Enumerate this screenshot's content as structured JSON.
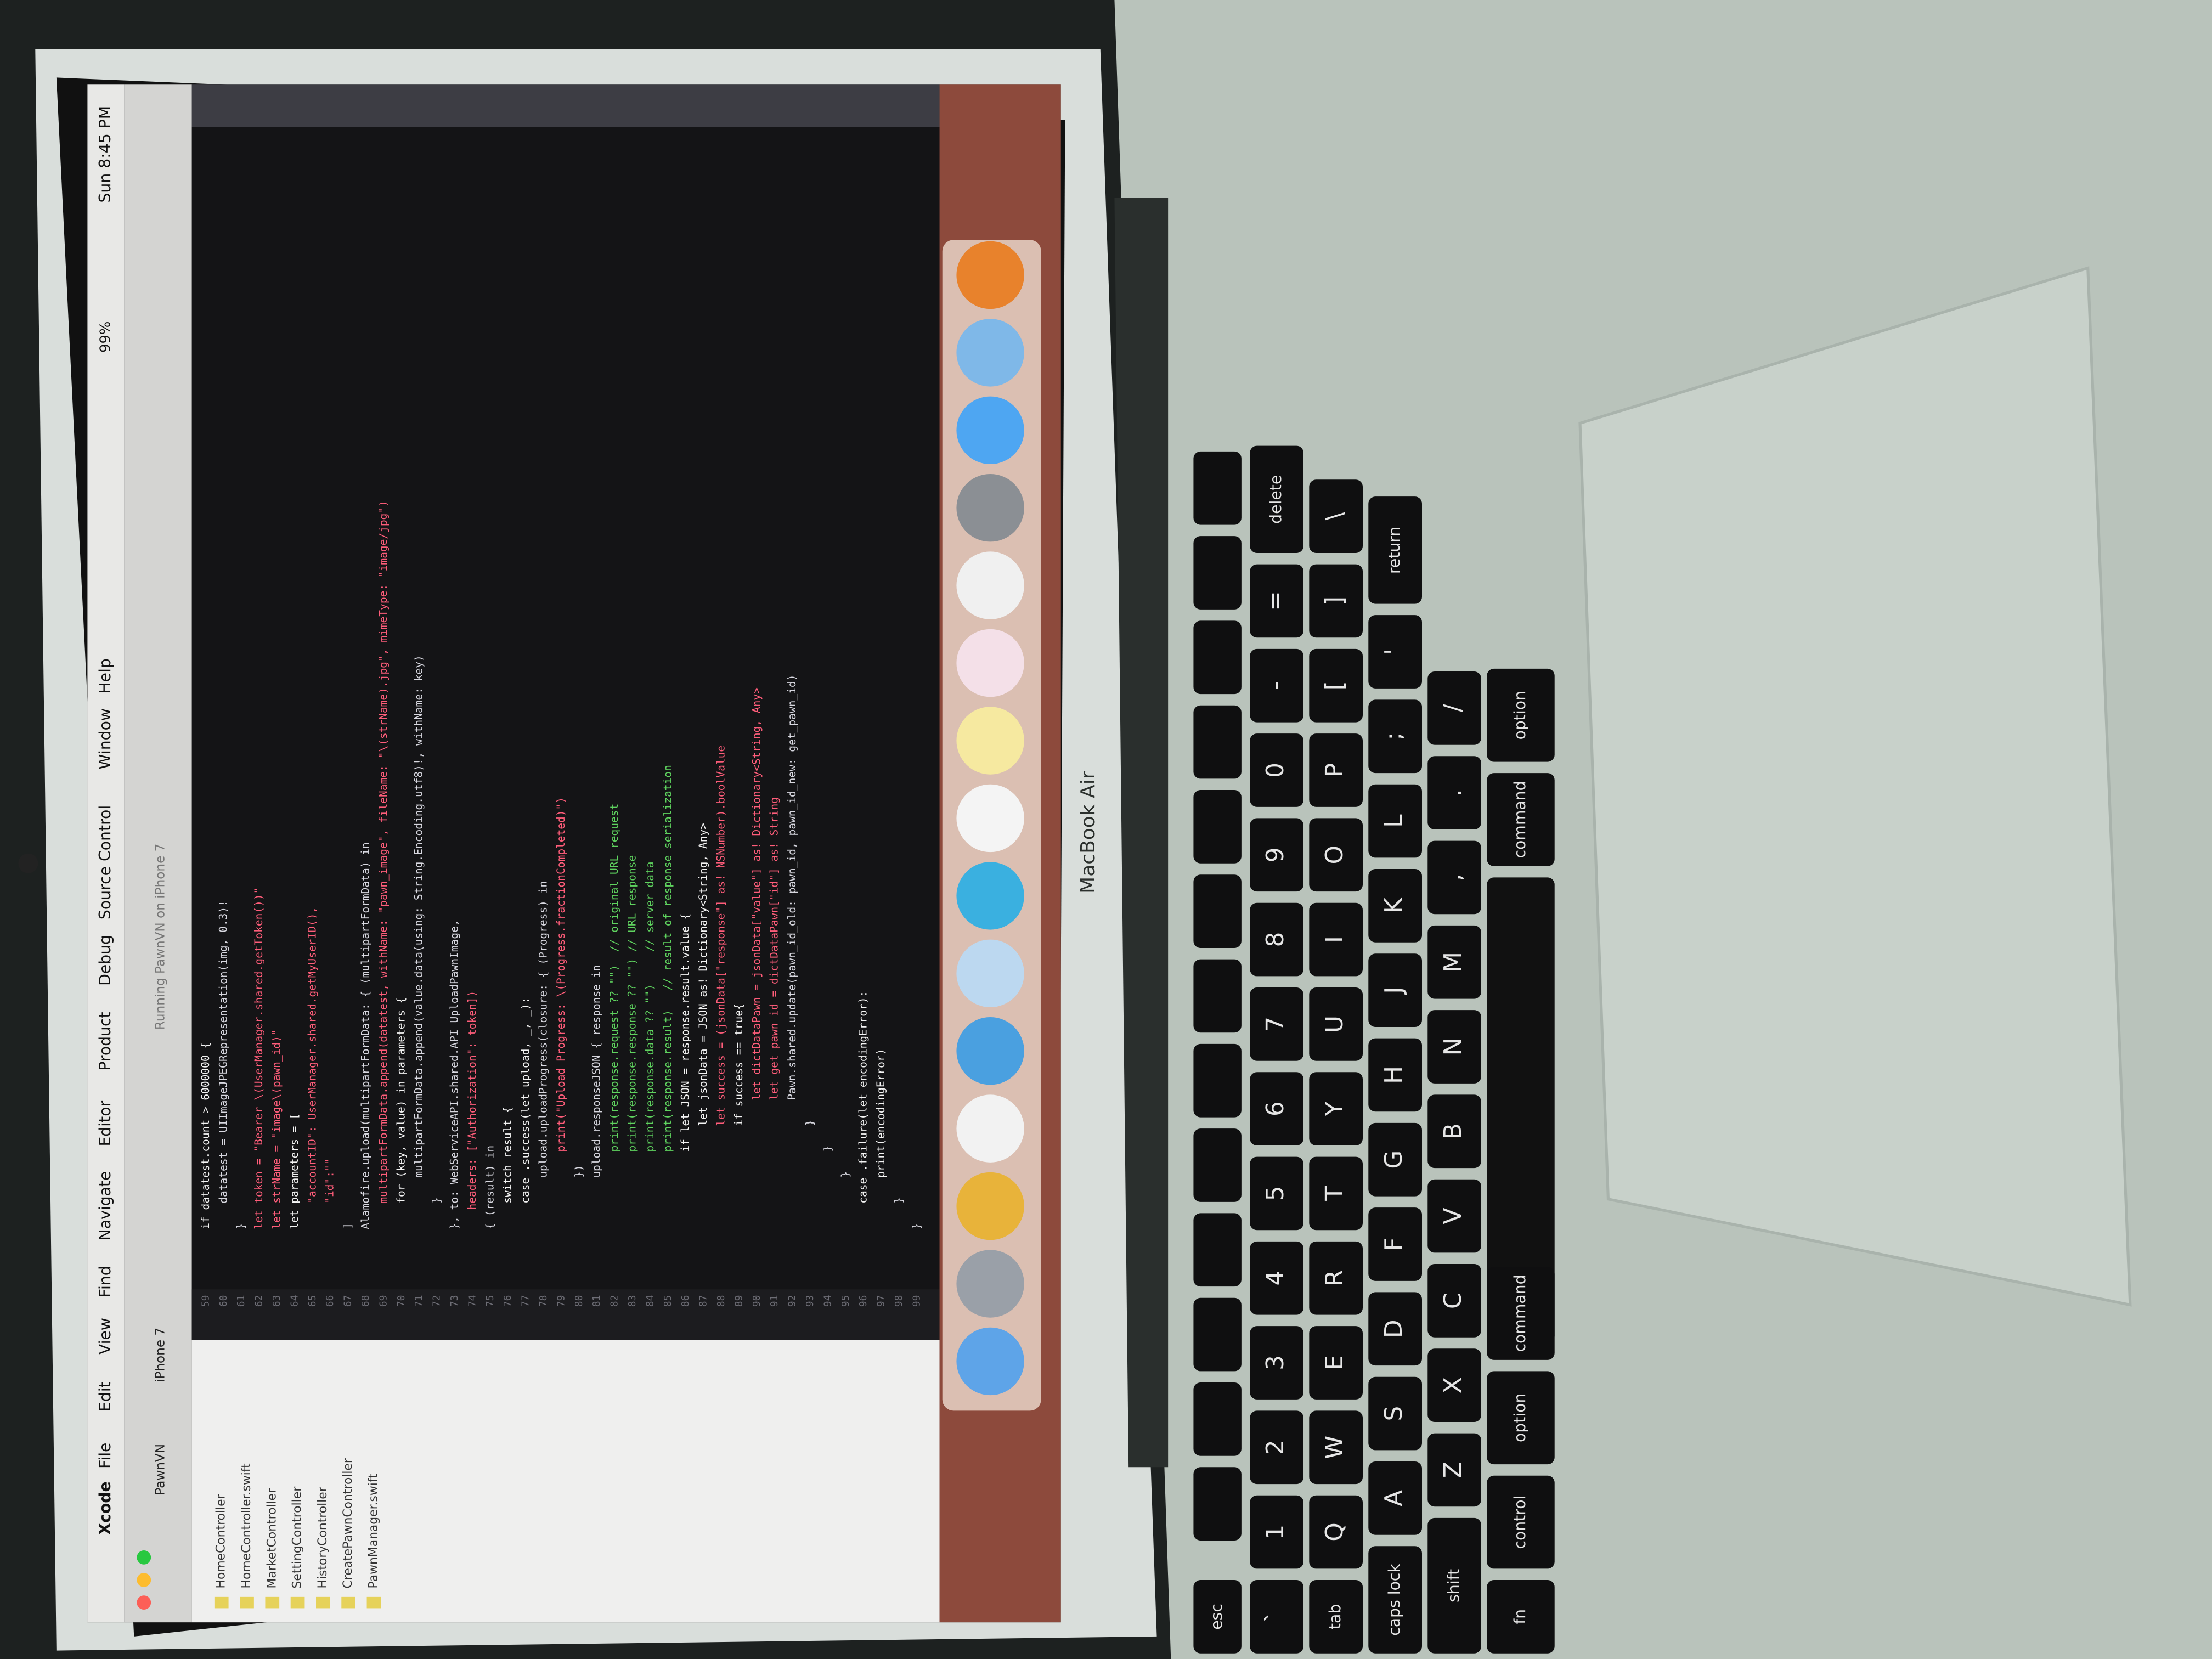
{
  "menu_bar": {
    "items": [
      "Xcode",
      "File",
      "Edit",
      "View",
      "Find",
      "Navigate",
      "Editor",
      "Product",
      "Debug",
      "Source Control",
      "Window",
      "Help"
    ]
  },
  "status": {
    "battery": "99%",
    "clock": "Sun 8:45 PM"
  },
  "toolbar": {
    "scheme": "PawnVN",
    "device": "iPhone 7",
    "status": "Running PawnVN on iPhone 7"
  },
  "navigator": {
    "files": [
      "HomeController",
      "HomeController.swift",
      "MarketController",
      "SettingController",
      "HistoryController",
      "CreatePawnController",
      "PawnManager.swift"
    ]
  },
  "editor": {
    "lines": [
      {
        "number": 59,
        "code": "        if datatest.count > 6000000 {"
      },
      {
        "number": 60,
        "code": "            datatest = UIImageJPEGRepresentation(img, 0.3)!"
      },
      {
        "number": 61,
        "code": "        }"
      },
      {
        "number": 62,
        "code": "        let token = \"Bearer \\(UserManager.shared.getToken())\""
      },
      {
        "number": 63,
        "code": "        let strName = \"image\\(pawn_id)\""
      },
      {
        "number": 64,
        "code": "        let parameters = ["
      },
      {
        "number": 65,
        "code": "            \"accountID\": UserManager.shared.getMyUserID(),"
      },
      {
        "number": 66,
        "code": "            \"id\":\"\""
      },
      {
        "number": 67,
        "code": "        ]"
      },
      {
        "number": 68,
        "code": "        Alamofire.upload(multipartFormData: { (multipartFormData) in"
      },
      {
        "number": 69,
        "code": "            multipartFormData.append(datatest, withName: \"pawn_image\", fileName: \"\\(strName).jpg\", mimeType: \"image/jpg\")"
      },
      {
        "number": 70,
        "code": "            for (key, value) in parameters {"
      },
      {
        "number": 71,
        "code": "                multipartFormData.append(value.data(using: String.Encoding.utf8)!, withName: key)"
      },
      {
        "number": 72,
        "code": "            }"
      },
      {
        "number": 73,
        "code": "        }, to: WebServiceAPI.shared.API_UploadPawnImage,"
      },
      {
        "number": 74,
        "code": "           headers: [\"Authorization\": token])"
      },
      {
        "number": 75,
        "code": "        { (result) in"
      },
      {
        "number": 76,
        "code": "            switch result {"
      },
      {
        "number": 77,
        "code": "            case .success(let upload, _, _):"
      },
      {
        "number": 78,
        "code": "                upload.uploadProgress(closure: { (Progress) in"
      },
      {
        "number": 79,
        "code": "                    print(\"Upload Progress: \\(Progress.fractionCompleted)\")"
      },
      {
        "number": 80,
        "code": "                })"
      },
      {
        "number": 81,
        "code": "                upload.responseJSON { response in"
      },
      {
        "number": 82,
        "code": "                    print(response.request ?? \"\")  // original URL request"
      },
      {
        "number": 83,
        "code": "                    print(response.response ?? \"\") // URL response"
      },
      {
        "number": 84,
        "code": "                    print(response.data ?? \"\")     // server data"
      },
      {
        "number": 85,
        "code": "                    print(response.result)   // result of response serialization"
      },
      {
        "number": 86,
        "code": "                    if let JSON = response.result.value {"
      },
      {
        "number": 87,
        "code": "                        let jsonData = JSON as! Dictionary<String, Any>"
      },
      {
        "number": 88,
        "code": "                        let success = (jsonData[\"response\"] as! NSNumber).boolValue"
      },
      {
        "number": 89,
        "code": "                        if success == true{"
      },
      {
        "number": 90,
        "code": "                            let dictDataPawn = jsonData[\"value\"] as! Dictionary<String, Any>"
      },
      {
        "number": 91,
        "code": "                            let get_pawn_id = dictDataPawn[\"id\"] as! String"
      },
      {
        "number": 92,
        "code": "                            Pawn.shared.update(pawn_id_old: pawn_id, pawn_id_new: get_pawn_id)"
      },
      {
        "number": 93,
        "code": "                        }"
      },
      {
        "number": 94,
        "code": "                    }"
      },
      {
        "number": 95,
        "code": "                }"
      },
      {
        "number": 96,
        "code": "            case .failure(let encodingError):"
      },
      {
        "number": 97,
        "code": "                print(encodingError)"
      },
      {
        "number": 98,
        "code": "            }"
      },
      {
        "number": 99,
        "code": "        }"
      }
    ]
  },
  "laptop": {
    "model": "MacBook Air"
  },
  "keyboard": {
    "fn_row": [
      "esc"
    ],
    "rows": [
      [
        "`",
        "1",
        "2",
        "3",
        "4",
        "5",
        "6",
        "7",
        "8",
        "9",
        "0",
        "-",
        "=",
        "delete"
      ],
      [
        "tab",
        "Q",
        "W",
        "E",
        "R",
        "T",
        "Y",
        "U",
        "I",
        "O",
        "P",
        "[",
        "]",
        "\\"
      ],
      [
        "caps lock",
        "A",
        "S",
        "D",
        "F",
        "G",
        "H",
        "J",
        "K",
        "L",
        ";",
        "'",
        "return"
      ],
      [
        "shift",
        "Z",
        "X",
        "C",
        "V",
        "B",
        "N",
        "M",
        ",",
        ".",
        "/"
      ]
    ],
    "bottom_left": [
      "fn",
      "control",
      "option",
      "command"
    ],
    "bottom_right": [
      "command",
      "option"
    ]
  }
}
